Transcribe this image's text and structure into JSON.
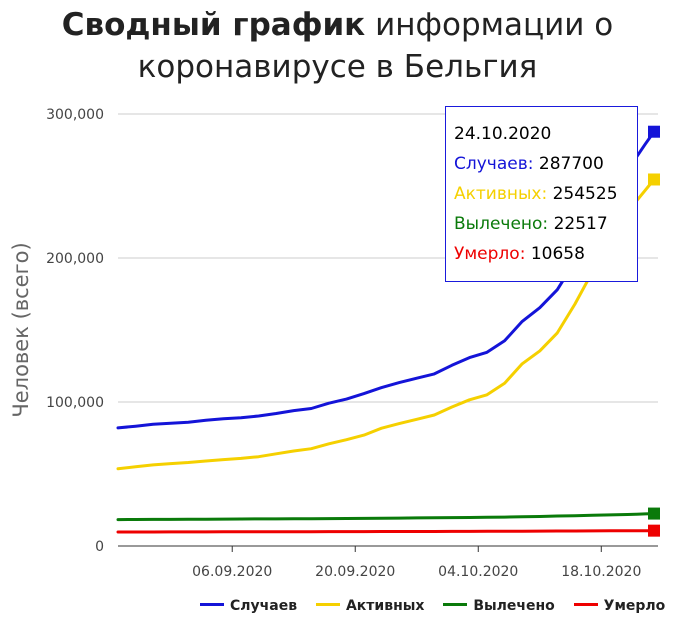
{
  "title": {
    "bold": "Сводный график",
    "rest_line1": " информации о",
    "line2": "коронавирусе в Бельгия"
  },
  "tooltip": {
    "date": "24.10.2020",
    "rows": [
      {
        "label": "Случаев:",
        "value": "287700",
        "color": "#1414d8"
      },
      {
        "label": "Активных:",
        "value": "254525",
        "color": "#f5d000"
      },
      {
        "label": "Вылечено:",
        "value": "22517",
        "color": "#0a7a0a"
      },
      {
        "label": "Умерло:",
        "value": "10658",
        "color": "#ee0000"
      }
    ]
  },
  "chart_data": {
    "type": "line",
    "ylabel": "Человек (всего)",
    "ylim": [
      0,
      300000
    ],
    "yticks": [
      0,
      100000,
      200000,
      300000
    ],
    "ytick_labels": [
      "0",
      "100,000",
      "200,000",
      "300,000"
    ],
    "xlim": [
      "2020-08-24",
      "2020-10-24"
    ],
    "xticks": [
      "2020-09-06",
      "2020-09-20",
      "2020-10-04",
      "2020-10-18"
    ],
    "xtick_labels": [
      "06.09.2020",
      "20.09.2020",
      "04.10.2020",
      "18.10.2020"
    ],
    "grid": true,
    "legend_position": "bottom",
    "x": [
      "2020-08-24",
      "2020-08-26",
      "2020-08-28",
      "2020-08-30",
      "2020-09-01",
      "2020-09-03",
      "2020-09-05",
      "2020-09-07",
      "2020-09-09",
      "2020-09-11",
      "2020-09-13",
      "2020-09-15",
      "2020-09-17",
      "2020-09-19",
      "2020-09-21",
      "2020-09-23",
      "2020-09-25",
      "2020-09-27",
      "2020-09-29",
      "2020-10-01",
      "2020-10-03",
      "2020-10-05",
      "2020-10-07",
      "2020-10-09",
      "2020-10-11",
      "2020-10-13",
      "2020-10-15",
      "2020-10-17",
      "2020-10-19",
      "2020-10-21",
      "2020-10-22",
      "2020-10-23",
      "2020-10-24"
    ],
    "series": [
      {
        "name": "Случаев",
        "color": "#1414d8",
        "values": [
          82000,
          83200,
          84500,
          85300,
          86000,
          87300,
          88300,
          89100,
          90300,
          92000,
          94000,
          95500,
          99200,
          102000,
          105800,
          110000,
          113500,
          116500,
          119500,
          125500,
          130800,
          134500,
          142500,
          156000,
          165500,
          178000,
          197500,
          220000,
          243000,
          262000,
          270000,
          279000,
          287700
        ]
      },
      {
        "name": "Активных",
        "color": "#f5d000",
        "values": [
          53700,
          55000,
          56300,
          57200,
          58000,
          59000,
          60000,
          60800,
          62000,
          64000,
          66000,
          67600,
          71000,
          73800,
          77000,
          81800,
          85000,
          88000,
          91000,
          96500,
          101500,
          105000,
          113000,
          126500,
          135500,
          148000,
          168000,
          190500,
          213000,
          231500,
          239500,
          247000,
          254525
        ]
      },
      {
        "name": "Вылечено",
        "color": "#0a7a0a",
        "values": [
          18300,
          18400,
          18450,
          18500,
          18550,
          18600,
          18700,
          18750,
          18800,
          18850,
          18900,
          18950,
          19000,
          19100,
          19200,
          19300,
          19400,
          19500,
          19600,
          19700,
          19800,
          19950,
          20100,
          20300,
          20500,
          20800,
          21000,
          21300,
          21600,
          21900,
          22100,
          22300,
          22517
        ]
      },
      {
        "name": "Умерло",
        "color": "#ee0000",
        "values": [
          9700,
          9720,
          9740,
          9760,
          9780,
          9800,
          9830,
          9860,
          9880,
          9900,
          9920,
          9950,
          9980,
          10000,
          10020,
          10040,
          10060,
          10080,
          10100,
          10130,
          10160,
          10200,
          10250,
          10300,
          10350,
          10400,
          10440,
          10480,
          10530,
          10580,
          10610,
          10630,
          10658
        ]
      }
    ]
  }
}
